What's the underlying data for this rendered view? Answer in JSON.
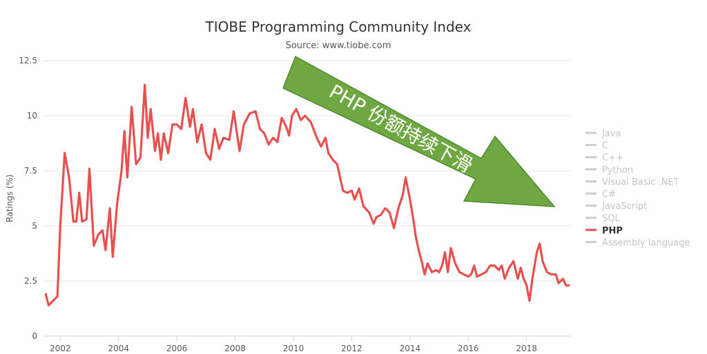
{
  "chart_data": {
    "type": "line",
    "title": "TIOBE Programming Community Index",
    "subtitle": "Source: www.tiobe.com",
    "xlabel": "",
    "ylabel": "Ratings (%)",
    "xlim": [
      2001.4,
      2019.5
    ],
    "ylim": [
      0,
      12.5
    ],
    "x_ticks": [
      "2002",
      "2004",
      "2006",
      "2008",
      "2010",
      "2012",
      "2014",
      "2016",
      "2018"
    ],
    "y_ticks": [
      "0",
      "2.5",
      "5",
      "7.5",
      "10",
      "12.5"
    ],
    "grid": true,
    "legend_position": "right",
    "legend": [
      {
        "name": "Java",
        "active": false
      },
      {
        "name": "C",
        "active": false
      },
      {
        "name": "C++",
        "active": false
      },
      {
        "name": "Python",
        "active": false
      },
      {
        "name": "Visual Basic .NET",
        "active": false
      },
      {
        "name": "C#",
        "active": false
      },
      {
        "name": "JavaScript",
        "active": false
      },
      {
        "name": "SQL",
        "active": false
      },
      {
        "name": "PHP",
        "active": true
      },
      {
        "name": "Assembly language",
        "active": false
      }
    ],
    "series": [
      {
        "name": "PHP",
        "color": "#e8504f",
        "points": [
          [
            2001.5,
            1.9
          ],
          [
            2001.6,
            1.4
          ],
          [
            2001.75,
            1.6
          ],
          [
            2001.9,
            1.8
          ],
          [
            2002.0,
            5.0
          ],
          [
            2002.15,
            8.3
          ],
          [
            2002.3,
            7.2
          ],
          [
            2002.45,
            5.2
          ],
          [
            2002.55,
            5.2
          ],
          [
            2002.65,
            6.5
          ],
          [
            2002.75,
            5.2
          ],
          [
            2002.9,
            5.3
          ],
          [
            2003.0,
            7.6
          ],
          [
            2003.15,
            4.1
          ],
          [
            2003.3,
            4.6
          ],
          [
            2003.45,
            4.8
          ],
          [
            2003.55,
            3.9
          ],
          [
            2003.7,
            5.8
          ],
          [
            2003.8,
            3.6
          ],
          [
            2003.95,
            6.0
          ],
          [
            2004.1,
            7.5
          ],
          [
            2004.2,
            9.3
          ],
          [
            2004.3,
            7.2
          ],
          [
            2004.45,
            10.4
          ],
          [
            2004.6,
            7.8
          ],
          [
            2004.75,
            8.1
          ],
          [
            2004.9,
            11.4
          ],
          [
            2005.0,
            9.0
          ],
          [
            2005.1,
            10.3
          ],
          [
            2005.25,
            8.4
          ],
          [
            2005.35,
            9.2
          ],
          [
            2005.45,
            8.0
          ],
          [
            2005.55,
            9.2
          ],
          [
            2005.7,
            8.3
          ],
          [
            2005.85,
            9.6
          ],
          [
            2006.0,
            9.6
          ],
          [
            2006.15,
            9.4
          ],
          [
            2006.3,
            10.8
          ],
          [
            2006.45,
            9.5
          ],
          [
            2006.55,
            10.3
          ],
          [
            2006.7,
            8.8
          ],
          [
            2006.85,
            9.6
          ],
          [
            2007.0,
            8.3
          ],
          [
            2007.15,
            8.0
          ],
          [
            2007.3,
            9.4
          ],
          [
            2007.45,
            8.5
          ],
          [
            2007.6,
            9.0
          ],
          [
            2007.8,
            8.9
          ],
          [
            2007.95,
            10.2
          ],
          [
            2008.15,
            8.4
          ],
          [
            2008.3,
            9.6
          ],
          [
            2008.5,
            10.1
          ],
          [
            2008.7,
            10.2
          ],
          [
            2008.85,
            9.4
          ],
          [
            2009.0,
            9.2
          ],
          [
            2009.15,
            8.7
          ],
          [
            2009.3,
            9.0
          ],
          [
            2009.45,
            8.8
          ],
          [
            2009.6,
            9.9
          ],
          [
            2009.75,
            9.5
          ],
          [
            2009.85,
            9.1
          ],
          [
            2009.95,
            10.0
          ],
          [
            2010.1,
            10.3
          ],
          [
            2010.25,
            9.8
          ],
          [
            2010.4,
            10.0
          ],
          [
            2010.6,
            9.7
          ],
          [
            2010.8,
            9.0
          ],
          [
            2010.95,
            8.6
          ],
          [
            2011.1,
            9.0
          ],
          [
            2011.2,
            8.3
          ],
          [
            2011.35,
            8.0
          ],
          [
            2011.5,
            7.8
          ],
          [
            2011.7,
            6.6
          ],
          [
            2011.85,
            6.5
          ],
          [
            2012.0,
            6.6
          ],
          [
            2012.1,
            6.2
          ],
          [
            2012.25,
            6.7
          ],
          [
            2012.4,
            5.9
          ],
          [
            2012.6,
            5.6
          ],
          [
            2012.75,
            5.1
          ],
          [
            2012.85,
            5.4
          ],
          [
            2013.0,
            5.5
          ],
          [
            2013.15,
            5.8
          ],
          [
            2013.3,
            5.6
          ],
          [
            2013.45,
            4.9
          ],
          [
            2013.6,
            5.8
          ],
          [
            2013.75,
            6.4
          ],
          [
            2013.85,
            7.2
          ],
          [
            2014.0,
            6.2
          ],
          [
            2014.1,
            5.4
          ],
          [
            2014.2,
            4.5
          ],
          [
            2014.3,
            3.9
          ],
          [
            2014.4,
            3.4
          ],
          [
            2014.5,
            2.8
          ],
          [
            2014.6,
            3.3
          ],
          [
            2014.75,
            2.9
          ],
          [
            2014.9,
            3.0
          ],
          [
            2015.0,
            2.9
          ],
          [
            2015.1,
            3.2
          ],
          [
            2015.2,
            3.8
          ],
          [
            2015.3,
            2.9
          ],
          [
            2015.4,
            4.0
          ],
          [
            2015.55,
            3.3
          ],
          [
            2015.7,
            2.9
          ],
          [
            2015.85,
            2.8
          ],
          [
            2016.0,
            2.7
          ],
          [
            2016.1,
            2.8
          ],
          [
            2016.2,
            3.2
          ],
          [
            2016.3,
            2.7
          ],
          [
            2016.45,
            2.8
          ],
          [
            2016.6,
            2.9
          ],
          [
            2016.75,
            3.2
          ],
          [
            2016.9,
            3.2
          ],
          [
            2017.05,
            3.0
          ],
          [
            2017.15,
            3.2
          ],
          [
            2017.25,
            2.6
          ],
          [
            2017.4,
            3.1
          ],
          [
            2017.55,
            3.4
          ],
          [
            2017.7,
            2.6
          ],
          [
            2017.8,
            3.1
          ],
          [
            2017.9,
            2.6
          ],
          [
            2018.0,
            2.3
          ],
          [
            2018.1,
            1.6
          ],
          [
            2018.2,
            2.6
          ],
          [
            2018.35,
            3.8
          ],
          [
            2018.45,
            4.2
          ],
          [
            2018.55,
            3.4
          ],
          [
            2018.7,
            2.9
          ],
          [
            2018.85,
            2.8
          ],
          [
            2019.0,
            2.8
          ],
          [
            2019.1,
            2.4
          ],
          [
            2019.25,
            2.6
          ],
          [
            2019.35,
            2.3
          ],
          [
            2019.45,
            2.3
          ]
        ]
      }
    ]
  },
  "annotation": {
    "text": "PHP  份额持续下滑",
    "color": "#6fa843",
    "text_color": "#ffffff"
  }
}
